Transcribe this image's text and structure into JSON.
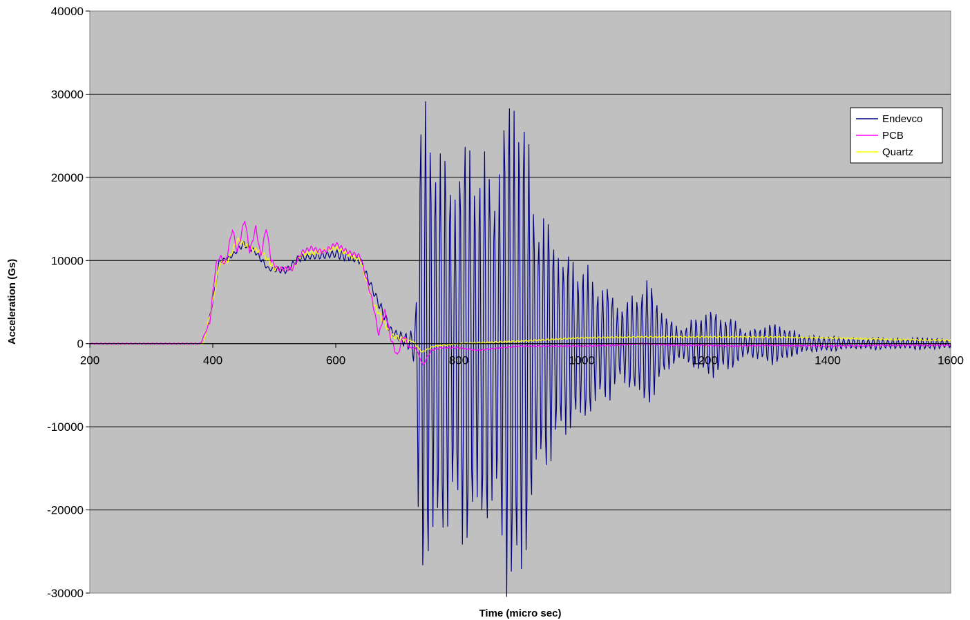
{
  "chart_data": {
    "type": "line",
    "title": "",
    "xlabel": "Time (micro sec)",
    "ylabel": "Acceleration (Gs)",
    "xlim": [
      200,
      1600
    ],
    "ylim": [
      -30000,
      40000
    ],
    "x_ticks": [
      200,
      400,
      600,
      800,
      1000,
      1200,
      1400,
      1600
    ],
    "y_ticks": [
      -30000,
      -20000,
      -10000,
      0,
      10000,
      20000,
      30000,
      40000
    ],
    "grid": "horizontal",
    "legend_position": "right",
    "plot_background": "#c0c0c0",
    "series": [
      {
        "name": "Endevco",
        "color": "#000080",
        "style": "oscillating",
        "baseline": [
          [
            200,
            0
          ],
          [
            385,
            0
          ],
          [
            400,
            5000
          ],
          [
            410,
            9800
          ],
          [
            430,
            10500
          ],
          [
            450,
            12000
          ],
          [
            470,
            11000
          ],
          [
            490,
            9000
          ],
          [
            520,
            8800
          ],
          [
            540,
            10300
          ],
          [
            600,
            10800
          ],
          [
            640,
            10000
          ],
          [
            660,
            6500
          ],
          [
            690,
            1500
          ],
          [
            715,
            300
          ],
          [
            730,
            0
          ],
          [
            800,
            0
          ],
          [
            1000,
            0
          ],
          [
            1200,
            0
          ],
          [
            1400,
            0
          ],
          [
            1600,
            0
          ]
        ],
        "amplitude": [
          [
            200,
            0
          ],
          [
            380,
            0
          ],
          [
            400,
            300
          ],
          [
            700,
            700
          ],
          [
            720,
            1500
          ],
          [
            730,
            5000
          ],
          [
            735,
            30000
          ],
          [
            760,
            29000
          ],
          [
            790,
            30000
          ],
          [
            830,
            24000
          ],
          [
            870,
            33000
          ],
          [
            890,
            35000
          ],
          [
            940,
            20000
          ],
          [
            970,
            11000
          ],
          [
            1000,
            14000
          ],
          [
            1030,
            8000
          ],
          [
            1060,
            6000
          ],
          [
            1100,
            9000
          ],
          [
            1140,
            4000
          ],
          [
            1170,
            2500
          ],
          [
            1220,
            5500
          ],
          [
            1250,
            3000
          ],
          [
            1270,
            1500
          ],
          [
            1300,
            3500
          ],
          [
            1340,
            1800
          ],
          [
            1400,
            1000
          ],
          [
            1450,
            800
          ],
          [
            1600,
            800
          ]
        ],
        "oscillation_period": 8
      },
      {
        "name": "PCB",
        "color": "#ff00ff",
        "points": [
          [
            200,
            0
          ],
          [
            380,
            0
          ],
          [
            395,
            2500
          ],
          [
            405,
            9500
          ],
          [
            412,
            10500
          ],
          [
            420,
            9500
          ],
          [
            432,
            13800
          ],
          [
            440,
            11000
          ],
          [
            452,
            15000
          ],
          [
            460,
            11000
          ],
          [
            470,
            14000
          ],
          [
            478,
            10500
          ],
          [
            487,
            14000
          ],
          [
            495,
            10000
          ],
          [
            505,
            9000
          ],
          [
            530,
            9000
          ],
          [
            545,
            11000
          ],
          [
            560,
            11500
          ],
          [
            580,
            11000
          ],
          [
            600,
            12000
          ],
          [
            620,
            11000
          ],
          [
            640,
            10500
          ],
          [
            660,
            5000
          ],
          [
            670,
            1000
          ],
          [
            680,
            4000
          ],
          [
            690,
            500
          ],
          [
            700,
            -1500
          ],
          [
            710,
            1000
          ],
          [
            720,
            -500
          ],
          [
            730,
            -500
          ],
          [
            742,
            -2600
          ],
          [
            755,
            -800
          ],
          [
            770,
            -500
          ],
          [
            800,
            -500
          ],
          [
            830,
            -800
          ],
          [
            870,
            -500
          ],
          [
            900,
            -300
          ],
          [
            950,
            -300
          ],
          [
            1000,
            -300
          ],
          [
            1050,
            -200
          ],
          [
            1100,
            0
          ],
          [
            1150,
            -200
          ],
          [
            1200,
            -200
          ],
          [
            1250,
            -300
          ],
          [
            1300,
            -200
          ],
          [
            1400,
            -300
          ],
          [
            1500,
            -200
          ],
          [
            1600,
            -200
          ]
        ]
      },
      {
        "name": "Quartz",
        "color": "#ffff00",
        "points": [
          [
            200,
            0
          ],
          [
            385,
            0
          ],
          [
            400,
            5000
          ],
          [
            410,
            9500
          ],
          [
            425,
            10000
          ],
          [
            440,
            12500
          ],
          [
            460,
            11500
          ],
          [
            480,
            11000
          ],
          [
            500,
            9000
          ],
          [
            530,
            9000
          ],
          [
            545,
            10800
          ],
          [
            570,
            11000
          ],
          [
            600,
            11500
          ],
          [
            640,
            10000
          ],
          [
            660,
            5000
          ],
          [
            690,
            1000
          ],
          [
            710,
            500
          ],
          [
            725,
            300
          ],
          [
            740,
            -1000
          ],
          [
            760,
            -300
          ],
          [
            800,
            0
          ],
          [
            900,
            300
          ],
          [
            1000,
            700
          ],
          [
            1100,
            800
          ],
          [
            1200,
            800
          ],
          [
            1300,
            800
          ],
          [
            1400,
            700
          ],
          [
            1500,
            500
          ],
          [
            1600,
            400
          ]
        ]
      }
    ]
  }
}
